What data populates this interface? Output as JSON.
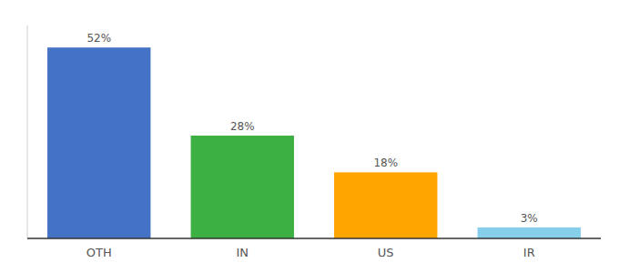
{
  "chart_data": {
    "type": "bar",
    "categories": [
      "OTH",
      "IN",
      "US",
      "IR"
    ],
    "values": [
      52,
      28,
      18,
      3
    ],
    "value_labels": [
      "52%",
      "28%",
      "18%",
      "3%"
    ],
    "colors": [
      "#4472C4",
      "#3CB043",
      "#FFA500",
      "#87CEEB"
    ],
    "ylim": [
      0,
      58
    ],
    "data_labels": true,
    "tick_labels": "x"
  }
}
